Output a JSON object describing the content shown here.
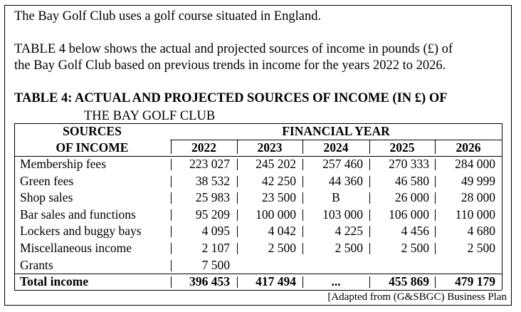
{
  "intro": "The Bay Golf Club uses a golf course situated in England.",
  "description_line1": "TABLE 4 below shows the actual and projected sources of income in pounds (£) of",
  "description_line2": "the Bay Golf Club based on previous trends in income for the years 2022 to 2026.",
  "table_title_line1": "TABLE 4: ACTUAL AND PROJECTED SOURCES OF INCOME (IN £) OF",
  "table_title_line2": "THE BAY GOLF CLUB",
  "header": {
    "sources_line1": "SOURCES",
    "sources_line2": "OF INCOME",
    "financial_year": "FINANCIAL YEAR",
    "years": [
      "2022",
      "2023",
      "2024",
      "2025",
      "2026"
    ]
  },
  "rows": [
    {
      "label": "Membership fees",
      "values": [
        "223 027",
        "245 202",
        "257 460",
        "270 333",
        "284 000"
      ]
    },
    {
      "label": "Green fees",
      "values": [
        "38 532",
        "42 250",
        "44 360",
        "46 580",
        "49 999"
      ]
    },
    {
      "label": "Shop sales",
      "values": [
        "25 983",
        "23 500",
        "B",
        "26 000",
        "28 000"
      ]
    },
    {
      "label": "Bar sales and functions",
      "values": [
        "95 209",
        "100 000",
        "103 000",
        "106 000",
        "110 000"
      ]
    },
    {
      "label": "Lockers and buggy bays",
      "values": [
        "4 095",
        "4 042",
        "4 225",
        "4 456",
        "4 680"
      ]
    },
    {
      "label": "Miscellaneous income",
      "values": [
        "2 107",
        "2 500",
        "2 500",
        "2 500",
        "2 500"
      ]
    },
    {
      "label": "Grants",
      "values": [
        "7 500",
        "",
        "",
        "",
        ""
      ]
    }
  ],
  "total": {
    "label": "Total income",
    "values": [
      "396 453",
      "417 494",
      "...",
      "455 869",
      "479 179"
    ]
  },
  "source_note": "[Adapted from (G&SBGC) Business Plan"
}
